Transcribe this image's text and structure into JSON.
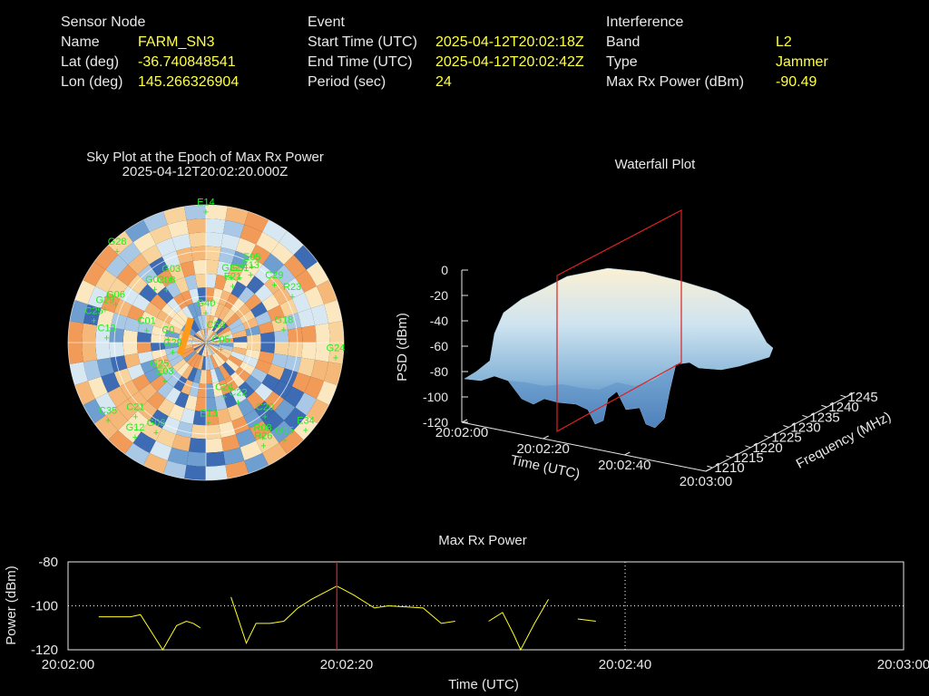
{
  "sensor_node": {
    "title": "Sensor Node",
    "fields": [
      {
        "label": "Name",
        "value": "FARM_SN3"
      },
      {
        "label": "Lat (deg)",
        "value": "-36.740848541"
      },
      {
        "label": "Lon (deg)",
        "value": "145.266326904"
      }
    ]
  },
  "event": {
    "title": "Event",
    "fields": [
      {
        "label": "Start Time (UTC)",
        "value": "2025-04-12T20:02:18Z"
      },
      {
        "label": "End Time (UTC)",
        "value": "2025-04-12T20:02:42Z"
      },
      {
        "label": "Period (sec)",
        "value": "24"
      }
    ]
  },
  "interference": {
    "title": "Interference",
    "fields": [
      {
        "label": "Band",
        "value": "L2"
      },
      {
        "label": "Type",
        "value": "Jammer"
      },
      {
        "label": "Max Rx Power (dBm)",
        "value": "-90.49"
      }
    ]
  },
  "colors": {
    "label": "#e8e8e8",
    "value": "#ffff44",
    "satellite": "#22ee22",
    "line": "#ffff22",
    "marker": "#dd2222",
    "grid": "#ffffff"
  },
  "chart_data": [
    {
      "type": "scatter",
      "title": "Sky Plot at the Epoch of Max Rx Power",
      "subtitle": "2025-04-12T20:02:20.000Z",
      "satellites": [
        {
          "name": "E14",
          "az": 0,
          "el": 2
        },
        {
          "name": "G28",
          "az": 317,
          "el": 5
        },
        {
          "name": "G32",
          "az": 20,
          "el": 42
        },
        {
          "name": "E21",
          "az": 24,
          "el": 47
        },
        {
          "name": "G31",
          "az": 26,
          "el": 40
        },
        {
          "name": "E13",
          "az": 32,
          "el": 35
        },
        {
          "name": "E05",
          "az": 30,
          "el": 30
        },
        {
          "name": "C29",
          "az": 48,
          "el": 30
        },
        {
          "name": "R23",
          "az": 60,
          "el": 25
        },
        {
          "name": "G18",
          "az": 78,
          "el": 38
        },
        {
          "name": "G24",
          "az": 95,
          "el": 5
        },
        {
          "name": "G40",
          "az": 0,
          "el": 68
        },
        {
          "name": "C58",
          "az": 40,
          "el": 80
        },
        {
          "name": "C05",
          "az": 100,
          "el": 80
        },
        {
          "name": "G02",
          "az": 318,
          "el": 40
        },
        {
          "name": "G03",
          "az": 333,
          "el": 40
        },
        {
          "name": "C08",
          "az": 325,
          "el": 45
        },
        {
          "name": "G06",
          "az": 295,
          "el": 25
        },
        {
          "name": "G29",
          "az": 290,
          "el": 20
        },
        {
          "name": "C25",
          "az": 283,
          "el": 15
        },
        {
          "name": "C13",
          "az": 275,
          "el": 25
        },
        {
          "name": "C01",
          "az": 285,
          "el": 50
        },
        {
          "name": "C0",
          "az": 280,
          "el": 65
        },
        {
          "name": "G29",
          "az": 260,
          "el": 68
        },
        {
          "name": "G25",
          "az": 240,
          "el": 55
        },
        {
          "name": "E03",
          "az": 230,
          "el": 55
        },
        {
          "name": "C24",
          "az": 160,
          "el": 55
        },
        {
          "name": "C22",
          "az": 150,
          "el": 48
        },
        {
          "name": "C20",
          "az": 140,
          "el": 30
        },
        {
          "name": "E13",
          "az": 178,
          "el": 40
        },
        {
          "name": "R08",
          "az": 148,
          "el": 20
        },
        {
          "name": "G15",
          "az": 140,
          "el": 10
        },
        {
          "name": "E34",
          "az": 130,
          "el": 5
        },
        {
          "name": "R26",
          "az": 150,
          "el": 15
        },
        {
          "name": "C21",
          "az": 225,
          "el": 25
        },
        {
          "name": "G12",
          "az": 218,
          "el": 15
        },
        {
          "name": "C35",
          "az": 233,
          "el": 10
        },
        {
          "name": "G06",
          "az": 210,
          "el": 25
        }
      ]
    },
    {
      "type": "area",
      "title": "Waterfall Plot",
      "xlabel": "Time (UTC)",
      "ylabel": "Frequency (MHz)",
      "zlabel": "PSD (dBm)",
      "x_ticks": [
        "20:02:00",
        "20:02:20",
        "20:02:40",
        "20:03:00"
      ],
      "y_ticks": [
        "1210",
        "1215",
        "1220",
        "1225",
        "1230",
        "1235",
        "1240",
        "1245"
      ],
      "z_ticks": [
        "0",
        "-20",
        "-40",
        "-60",
        "-80",
        "-100",
        "-120"
      ],
      "zlim": [
        -120,
        0
      ],
      "epoch_marker": "20:02:20"
    },
    {
      "type": "line",
      "title": "Max Rx Power",
      "xlabel": "Time (UTC)",
      "ylabel": "Power (dBm)",
      "ylim": [
        -120,
        -80
      ],
      "y_ticks": [
        "-80",
        "-100",
        "-120"
      ],
      "x_ticks": [
        "20:02:00",
        "20:02:20",
        "20:02:40",
        "20:03:00"
      ],
      "epoch_marker_sec": 19.3,
      "gridlines": {
        "y": -100,
        "x_sec": 40
      },
      "segments": [
        [
          [
            2.2,
            -105
          ],
          [
            4.5,
            -105
          ],
          [
            5.2,
            -104
          ],
          [
            6.2,
            -114
          ],
          [
            6.8,
            -120
          ],
          [
            7.8,
            -109
          ],
          [
            8.5,
            -107
          ],
          [
            9.0,
            -108
          ],
          [
            9.5,
            -110
          ]
        ],
        [
          [
            11.7,
            -96
          ],
          [
            12.8,
            -117
          ],
          [
            13.5,
            -108
          ],
          [
            14.5,
            -108
          ],
          [
            15.5,
            -107
          ],
          [
            16.5,
            -101
          ],
          [
            17.5,
            -97
          ],
          [
            19.3,
            -91
          ],
          [
            20.5,
            -95
          ],
          [
            22.0,
            -101
          ],
          [
            23.0,
            -100
          ],
          [
            25.5,
            -101
          ],
          [
            26.8,
            -108
          ],
          [
            27.8,
            -107
          ]
        ],
        [
          [
            30.2,
            -107
          ],
          [
            31.2,
            -103
          ],
          [
            32.0,
            -113
          ],
          [
            32.5,
            -120
          ],
          [
            33.5,
            -108
          ],
          [
            34.5,
            -97
          ]
        ],
        [
          [
            36.6,
            -106
          ],
          [
            37.9,
            -107
          ]
        ]
      ]
    }
  ]
}
